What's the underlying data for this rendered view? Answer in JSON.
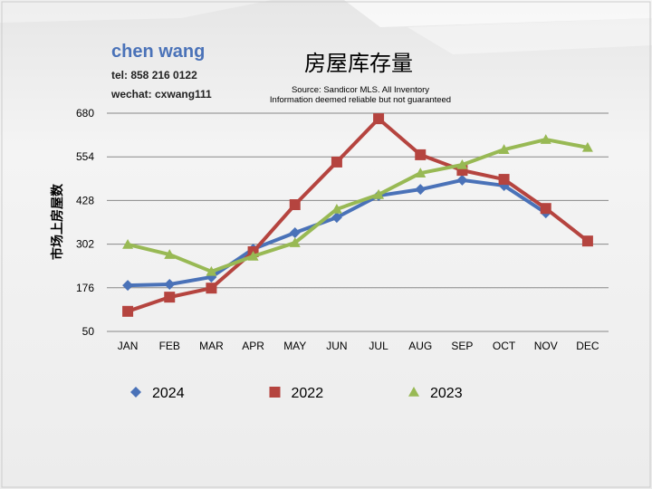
{
  "chart_data": {
    "type": "line",
    "author": "chen wang",
    "contact": [
      "tel: 858 216 0122",
      "wechat: cxwang111"
    ],
    "title": "房屋库存量",
    "subtitle": [
      "Source: Sandicor MLS. All Inventory",
      "Information deemed reliable but not guaranteed"
    ],
    "ylabel": "市场上房屋数",
    "categories": [
      "JAN",
      "FEB",
      "MAR",
      "APR",
      "MAY",
      "JUN",
      "JUL",
      "AUG",
      "SEP",
      "OCT",
      "NOV",
      "DEC"
    ],
    "series": [
      {
        "name": "2024",
        "color": "#4a72b8",
        "marker": "diamond",
        "values": [
          183,
          186,
          207,
          288,
          335,
          379,
          442,
          460,
          487,
          471,
          392,
          null
        ]
      },
      {
        "name": "2022",
        "color": "#b5443f",
        "marker": "square",
        "values": [
          108,
          149,
          175,
          280,
          416,
          539,
          664,
          560,
          515,
          489,
          405,
          311
        ]
      },
      {
        "name": "2023",
        "color": "#98b954",
        "marker": "triangle",
        "values": [
          301,
          272,
          223,
          267,
          306,
          403,
          445,
          507,
          531,
          575,
          604,
          581
        ]
      }
    ],
    "ylim": [
      50,
      680
    ],
    "yticks": [
      50,
      176,
      302,
      428,
      554,
      680
    ],
    "grid": true,
    "legend": "bottom"
  }
}
